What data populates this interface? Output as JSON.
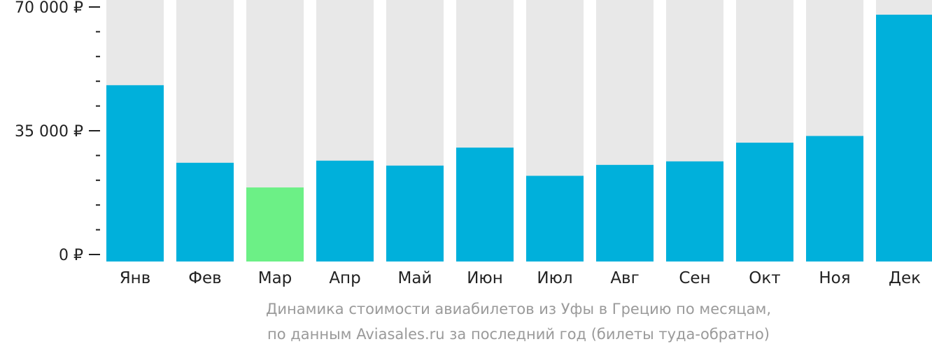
{
  "chart_data": {
    "type": "bar",
    "categories": [
      "Янв",
      "Фев",
      "Мар",
      "Апр",
      "Май",
      "Июн",
      "Июл",
      "Авг",
      "Сен",
      "Окт",
      "Ноя",
      "Дек"
    ],
    "values": [
      50000,
      28000,
      21000,
      28600,
      27200,
      32300,
      24300,
      27400,
      28400,
      33700,
      35600,
      70000
    ],
    "y_ticks": [
      {
        "value": 0,
        "label": "0 ₽"
      },
      {
        "value": 35000,
        "label": "35 000 ₽"
      },
      {
        "value": 70000,
        "label": "70 000 ₽"
      }
    ],
    "ylim": [
      0,
      72000
    ],
    "minor_tick_step": 7000,
    "highlight_index": 2,
    "colors": {
      "bar": "#00b0db",
      "highlight": "#6cf086",
      "background_bar": "#e8e8e8",
      "axis": "#222222"
    },
    "caption_line1": "Динамика стоимости авиабилетов из Уфы в Грецию по месяцам,",
    "caption_line2": "по данным Aviasales.ru за последний год (билеты туда-обратно)"
  }
}
